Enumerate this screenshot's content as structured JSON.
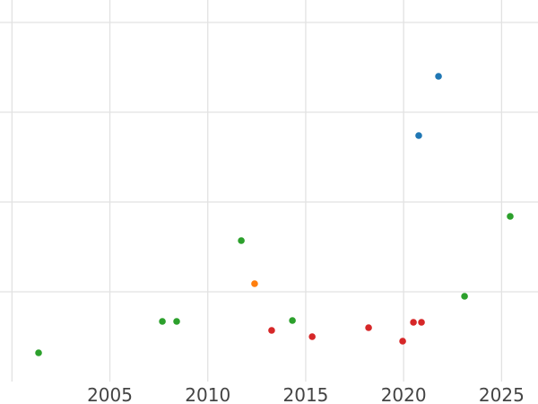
{
  "figure": {
    "kind": "scatter-chart",
    "background": "#ffffff"
  },
  "chart_data": {
    "type": "scatter",
    "title": "",
    "xlabel": "",
    "ylabel": "",
    "grid": true,
    "legend": "none",
    "gridline_color": "#e2e2e2",
    "tick_label_color": "#444444",
    "marker_radius": 3.8,
    "x_range": [
      1999.39,
      2026.86
    ],
    "y_range": [
      0,
      4.25
    ],
    "x_ticks": [
      2005,
      2010,
      2015,
      2020,
      2025
    ],
    "x_gridlines": [
      2000,
      2005,
      2010,
      2015,
      2020,
      2025
    ],
    "y_gridlines": [
      1,
      2,
      3,
      4
    ],
    "series": [
      {
        "name": "green",
        "color": "#2ca02c",
        "points": [
          {
            "x": 2001.36,
            "y": 0.32
          },
          {
            "x": 2007.68,
            "y": 0.67
          },
          {
            "x": 2008.41,
            "y": 0.67
          },
          {
            "x": 2011.71,
            "y": 1.57
          },
          {
            "x": 2014.32,
            "y": 0.68
          },
          {
            "x": 2023.11,
            "y": 0.95
          },
          {
            "x": 2025.44,
            "y": 1.84
          }
        ]
      },
      {
        "name": "orange",
        "color": "#ff7f0e",
        "points": [
          {
            "x": 2012.39,
            "y": 1.09
          }
        ]
      },
      {
        "name": "red",
        "color": "#d62728",
        "points": [
          {
            "x": 2013.26,
            "y": 0.57
          },
          {
            "x": 2015.33,
            "y": 0.5
          },
          {
            "x": 2018.21,
            "y": 0.6
          },
          {
            "x": 2019.95,
            "y": 0.45
          },
          {
            "x": 2020.5,
            "y": 0.66
          },
          {
            "x": 2020.91,
            "y": 0.66
          }
        ]
      },
      {
        "name": "blue",
        "color": "#1f77b4",
        "points": [
          {
            "x": 2020.77,
            "y": 2.74
          },
          {
            "x": 2021.78,
            "y": 3.4
          }
        ]
      }
    ]
  }
}
